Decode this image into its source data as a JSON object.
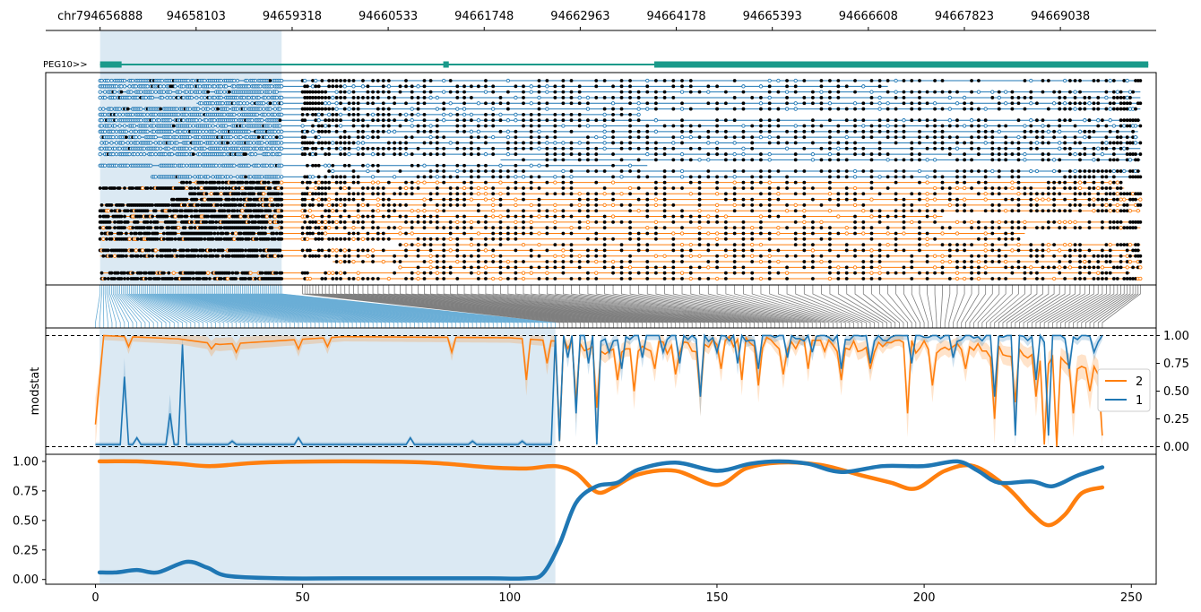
{
  "chart_data": [
    {
      "type": "gene-track",
      "gene_label": "PEG10>>",
      "genomic_ticks": [
        "chr794656888",
        "94658103",
        "94659318",
        "94660533",
        "94661748",
        "94662963",
        "94664178",
        "94665393",
        "94666608",
        "94667823",
        "94669038"
      ],
      "genomic_tick_positions": [
        94656888,
        94658103,
        94659318,
        94660533,
        94661748,
        94662963,
        94664178,
        94665393,
        94666608,
        94667823,
        94669038
      ],
      "genomic_range": [
        94656200,
        94670250
      ],
      "highlight_range": [
        94656888,
        94659185
      ],
      "exons": [
        {
          "start": 94656888,
          "end": 94657160,
          "thick": true
        },
        {
          "start": 94661230,
          "end": 94661300,
          "thick": true
        },
        {
          "start": 94663900,
          "end": 94670150,
          "thick": true
        }
      ],
      "intron_span": [
        94656888,
        94670150
      ]
    },
    {
      "type": "read-methylation",
      "groups": [
        {
          "name": "1",
          "color": "#1f77b4",
          "n_reads": 18
        },
        {
          "name": "2",
          "color": "#ff7f0e",
          "n_reads": 18
        }
      ],
      "methylated_color": "#000000"
    },
    {
      "type": "line",
      "ylabel": "modstat",
      "ylim": [
        -0.02,
        1.02
      ],
      "yticks": [
        0.0,
        0.25,
        0.5,
        0.75,
        1.0
      ],
      "ytick_labels": [
        "0.00",
        "0.25",
        "0.50",
        "0.75",
        "1.00"
      ],
      "reference_lines": [
        0.0,
        1.0
      ],
      "n_cpg": 244,
      "highlight_cpg_range": [
        1,
        111
      ],
      "legend": {
        "placement": "right",
        "entries": [
          "2",
          "1"
        ]
      },
      "series": [
        {
          "name": "2",
          "color": "#ff7f0e",
          "baseline": [
            {
              "x": 0,
              "y": 0.2
            },
            {
              "x": 2,
              "y": 1.0
            },
            {
              "x": 20,
              "y": 0.97
            },
            {
              "x": 30,
              "y": 0.92
            },
            {
              "x": 60,
              "y": 0.99
            },
            {
              "x": 100,
              "y": 0.98
            },
            {
              "x": 111,
              "y": 0.95
            },
            {
              "x": 125,
              "y": 0.85
            },
            {
              "x": 140,
              "y": 0.9
            },
            {
              "x": 160,
              "y": 0.95
            },
            {
              "x": 180,
              "y": 0.9
            },
            {
              "x": 200,
              "y": 0.9
            },
            {
              "x": 220,
              "y": 0.85
            },
            {
              "x": 243,
              "y": 0.7
            }
          ],
          "dips": [
            {
              "x": 8,
              "y": 0.9
            },
            {
              "x": 28,
              "y": 0.88
            },
            {
              "x": 34,
              "y": 0.85
            },
            {
              "x": 49,
              "y": 0.88
            },
            {
              "x": 56,
              "y": 0.9
            },
            {
              "x": 86,
              "y": 0.85
            },
            {
              "x": 104,
              "y": 0.6
            },
            {
              "x": 109,
              "y": 0.75
            },
            {
              "x": 112,
              "y": 0.05
            },
            {
              "x": 116,
              "y": 0.4
            },
            {
              "x": 121,
              "y": 0.35
            },
            {
              "x": 126,
              "y": 0.6
            },
            {
              "x": 130,
              "y": 0.5
            },
            {
              "x": 135,
              "y": 0.7
            },
            {
              "x": 140,
              "y": 0.65
            },
            {
              "x": 146,
              "y": 0.45
            },
            {
              "x": 151,
              "y": 0.7
            },
            {
              "x": 156,
              "y": 0.6
            },
            {
              "x": 160,
              "y": 0.55
            },
            {
              "x": 166,
              "y": 0.65
            },
            {
              "x": 172,
              "y": 0.7
            },
            {
              "x": 180,
              "y": 0.6
            },
            {
              "x": 187,
              "y": 0.7
            },
            {
              "x": 196,
              "y": 0.3
            },
            {
              "x": 202,
              "y": 0.55
            },
            {
              "x": 210,
              "y": 0.7
            },
            {
              "x": 217,
              "y": 0.25
            },
            {
              "x": 222,
              "y": 0.4
            },
            {
              "x": 227,
              "y": 0.45
            },
            {
              "x": 229,
              "y": 0.02
            },
            {
              "x": 232,
              "y": 0.0
            },
            {
              "x": 236,
              "y": 0.3
            },
            {
              "x": 240,
              "y": 0.5
            },
            {
              "x": 243,
              "y": 0.1
            }
          ]
        },
        {
          "name": "1",
          "color": "#1f77b4",
          "baseline": [
            {
              "x": 0,
              "y": 0.02
            },
            {
              "x": 110,
              "y": 0.02
            },
            {
              "x": 111,
              "y": 1.0
            },
            {
              "x": 243,
              "y": 1.0
            }
          ],
          "spikes": [
            {
              "x": 7,
              "y": 0.63
            },
            {
              "x": 10,
              "y": 0.08
            },
            {
              "x": 18,
              "y": 0.3
            },
            {
              "x": 21,
              "y": 0.92
            },
            {
              "x": 33,
              "y": 0.05
            },
            {
              "x": 49,
              "y": 0.08
            },
            {
              "x": 76,
              "y": 0.08
            },
            {
              "x": 91,
              "y": 0.05
            },
            {
              "x": 103,
              "y": 0.05
            }
          ],
          "dips": [
            {
              "x": 112,
              "y": 0.05
            },
            {
              "x": 114,
              "y": 0.8
            },
            {
              "x": 116,
              "y": 0.3
            },
            {
              "x": 119,
              "y": 0.75
            },
            {
              "x": 121,
              "y": 0.02
            },
            {
              "x": 124,
              "y": 0.85
            },
            {
              "x": 127,
              "y": 0.7
            },
            {
              "x": 132,
              "y": 0.8
            },
            {
              "x": 137,
              "y": 0.85
            },
            {
              "x": 141,
              "y": 0.75
            },
            {
              "x": 146,
              "y": 0.45
            },
            {
              "x": 150,
              "y": 0.85
            },
            {
              "x": 155,
              "y": 0.75
            },
            {
              "x": 160,
              "y": 0.7
            },
            {
              "x": 167,
              "y": 0.8
            },
            {
              "x": 173,
              "y": 0.85
            },
            {
              "x": 180,
              "y": 0.7
            },
            {
              "x": 187,
              "y": 0.75
            },
            {
              "x": 197,
              "y": 0.75
            },
            {
              "x": 207,
              "y": 0.8
            },
            {
              "x": 217,
              "y": 0.45
            },
            {
              "x": 222,
              "y": 0.1
            },
            {
              "x": 227,
              "y": 0.6
            },
            {
              "x": 230,
              "y": 0.1
            },
            {
              "x": 235,
              "y": 0.7
            },
            {
              "x": 241,
              "y": 0.85
            }
          ]
        }
      ]
    },
    {
      "type": "line",
      "xlim": [
        -12,
        256
      ],
      "ylim": [
        -0.04,
        1.06
      ],
      "xticks": [
        0,
        50,
        100,
        150,
        200,
        250
      ],
      "yticks": [
        0.0,
        0.25,
        0.5,
        0.75,
        1.0
      ],
      "ytick_labels": [
        "0.00",
        "0.25",
        "0.50",
        "0.75",
        "1.00"
      ],
      "highlight_cpg_range": [
        1,
        111
      ],
      "series": [
        {
          "name": "2",
          "color": "#ff7f0e",
          "points": [
            {
              "x": 1,
              "y": 1.0
            },
            {
              "x": 10,
              "y": 1.0
            },
            {
              "x": 20,
              "y": 0.98
            },
            {
              "x": 28,
              "y": 0.96
            },
            {
              "x": 40,
              "y": 0.99
            },
            {
              "x": 60,
              "y": 1.0
            },
            {
              "x": 80,
              "y": 0.99
            },
            {
              "x": 95,
              "y": 0.95
            },
            {
              "x": 104,
              "y": 0.94
            },
            {
              "x": 111,
              "y": 0.96
            },
            {
              "x": 116,
              "y": 0.9
            },
            {
              "x": 121,
              "y": 0.74
            },
            {
              "x": 125,
              "y": 0.78
            },
            {
              "x": 131,
              "y": 0.89
            },
            {
              "x": 140,
              "y": 0.92
            },
            {
              "x": 150,
              "y": 0.8
            },
            {
              "x": 157,
              "y": 0.94
            },
            {
              "x": 165,
              "y": 0.99
            },
            {
              "x": 175,
              "y": 0.97
            },
            {
              "x": 185,
              "y": 0.88
            },
            {
              "x": 192,
              "y": 0.82
            },
            {
              "x": 198,
              "y": 0.77
            },
            {
              "x": 205,
              "y": 0.92
            },
            {
              "x": 212,
              "y": 0.96
            },
            {
              "x": 220,
              "y": 0.78
            },
            {
              "x": 226,
              "y": 0.56
            },
            {
              "x": 230,
              "y": 0.46
            },
            {
              "x": 234,
              "y": 0.55
            },
            {
              "x": 238,
              "y": 0.73
            },
            {
              "x": 243,
              "y": 0.78
            }
          ]
        },
        {
          "name": "1",
          "color": "#1f77b4",
          "points": [
            {
              "x": 1,
              "y": 0.06
            },
            {
              "x": 5,
              "y": 0.06
            },
            {
              "x": 10,
              "y": 0.08
            },
            {
              "x": 15,
              "y": 0.06
            },
            {
              "x": 22,
              "y": 0.15
            },
            {
              "x": 27,
              "y": 0.1
            },
            {
              "x": 32,
              "y": 0.03
            },
            {
              "x": 45,
              "y": 0.01
            },
            {
              "x": 60,
              "y": 0.01
            },
            {
              "x": 80,
              "y": 0.01
            },
            {
              "x": 95,
              "y": 0.01
            },
            {
              "x": 104,
              "y": 0.01
            },
            {
              "x": 108,
              "y": 0.05
            },
            {
              "x": 112,
              "y": 0.3
            },
            {
              "x": 116,
              "y": 0.65
            },
            {
              "x": 121,
              "y": 0.79
            },
            {
              "x": 126,
              "y": 0.82
            },
            {
              "x": 131,
              "y": 0.93
            },
            {
              "x": 140,
              "y": 0.99
            },
            {
              "x": 150,
              "y": 0.92
            },
            {
              "x": 158,
              "y": 0.98
            },
            {
              "x": 165,
              "y": 1.0
            },
            {
              "x": 172,
              "y": 0.98
            },
            {
              "x": 180,
              "y": 0.91
            },
            {
              "x": 190,
              "y": 0.96
            },
            {
              "x": 200,
              "y": 0.96
            },
            {
              "x": 208,
              "y": 1.0
            },
            {
              "x": 213,
              "y": 0.92
            },
            {
              "x": 218,
              "y": 0.82
            },
            {
              "x": 226,
              "y": 0.83
            },
            {
              "x": 231,
              "y": 0.79
            },
            {
              "x": 237,
              "y": 0.88
            },
            {
              "x": 243,
              "y": 0.95
            }
          ]
        }
      ]
    }
  ]
}
